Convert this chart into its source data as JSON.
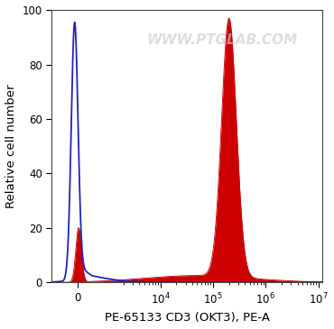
{
  "xlabel": "PE-65133 CD3 (OKT3), PE-A",
  "ylabel": "Relative cell number",
  "ylim": [
    0,
    100
  ],
  "background_color": "#ffffff",
  "watermark": "WWW.PTGLAB.COM",
  "blue_color": "#2222bb",
  "red_color": "#cc0000",
  "label_fontsize": 9.5,
  "tick_fontsize": 8.5,
  "watermark_fontsize": 11,
  "watermark_color": "#cccccc",
  "watermark_alpha": 0.65,
  "linthresh": 500,
  "linscale": 0.25,
  "xlim_low": -800,
  "xlim_high": 12000000
}
